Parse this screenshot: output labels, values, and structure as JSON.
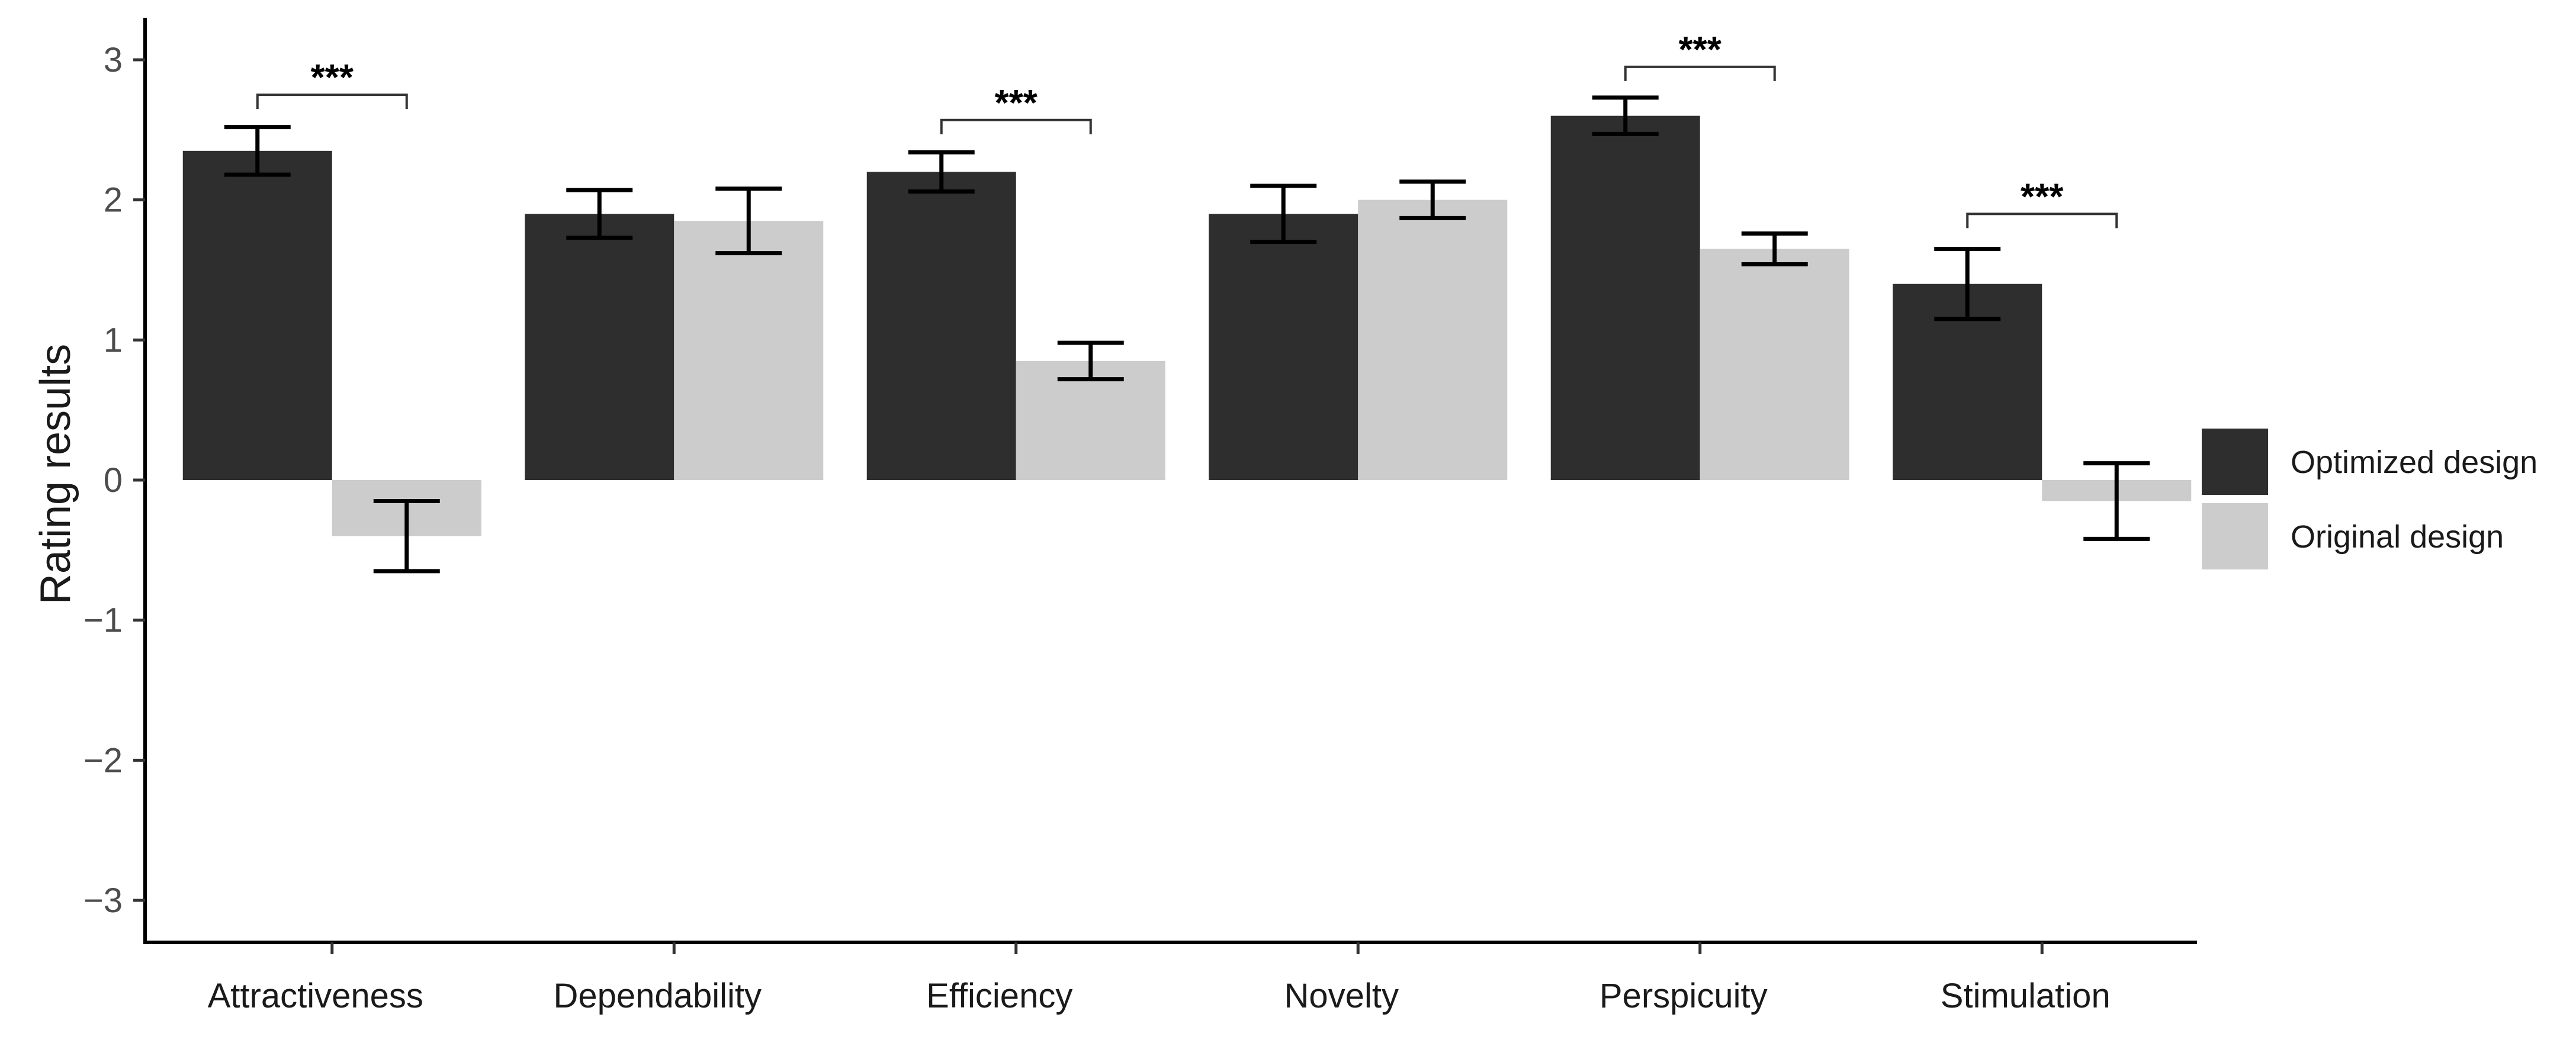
{
  "chart_data": {
    "type": "bar",
    "ylabel": "Rating results",
    "xlabel": "",
    "ylim": [
      -3.3,
      3.3
    ],
    "yticks": [
      -3,
      -2,
      -1,
      0,
      1,
      2,
      3
    ],
    "ytick_labels": [
      "−3",
      "−2",
      "−1",
      "0",
      "1",
      "2",
      "3"
    ],
    "categories": [
      "Attractiveness",
      "Dependability",
      "Efficiency",
      "Novelty",
      "Perspicuity",
      "Stimulation"
    ],
    "series": [
      {
        "name": "Optimized design",
        "color": "#2e2e2e",
        "values": [
          2.35,
          1.9,
          2.2,
          1.9,
          2.6,
          1.4
        ],
        "error_low": [
          2.18,
          1.73,
          2.06,
          1.7,
          2.47,
          1.15
        ],
        "error_high": [
          2.52,
          2.07,
          2.34,
          2.1,
          2.73,
          1.65
        ]
      },
      {
        "name": "Original design",
        "color": "#cccccc",
        "values": [
          -0.4,
          1.85,
          0.85,
          2.0,
          1.65,
          -0.15
        ],
        "error_low": [
          -0.65,
          1.62,
          0.72,
          1.87,
          1.54,
          -0.42
        ],
        "error_high": [
          -0.15,
          2.08,
          0.98,
          2.13,
          1.76,
          0.12
        ]
      }
    ],
    "significance": [
      {
        "category": "Attractiveness",
        "label": "***",
        "y": 2.75
      },
      {
        "category": "Efficiency",
        "label": "***",
        "y": 2.57
      },
      {
        "category": "Perspicuity",
        "label": "***",
        "y": 2.95
      },
      {
        "category": "Stimulation",
        "label": "***",
        "y": 1.9
      }
    ],
    "legend": {
      "placement": "right",
      "entries": [
        "Optimized design",
        "Original design"
      ]
    },
    "grid": false
  }
}
